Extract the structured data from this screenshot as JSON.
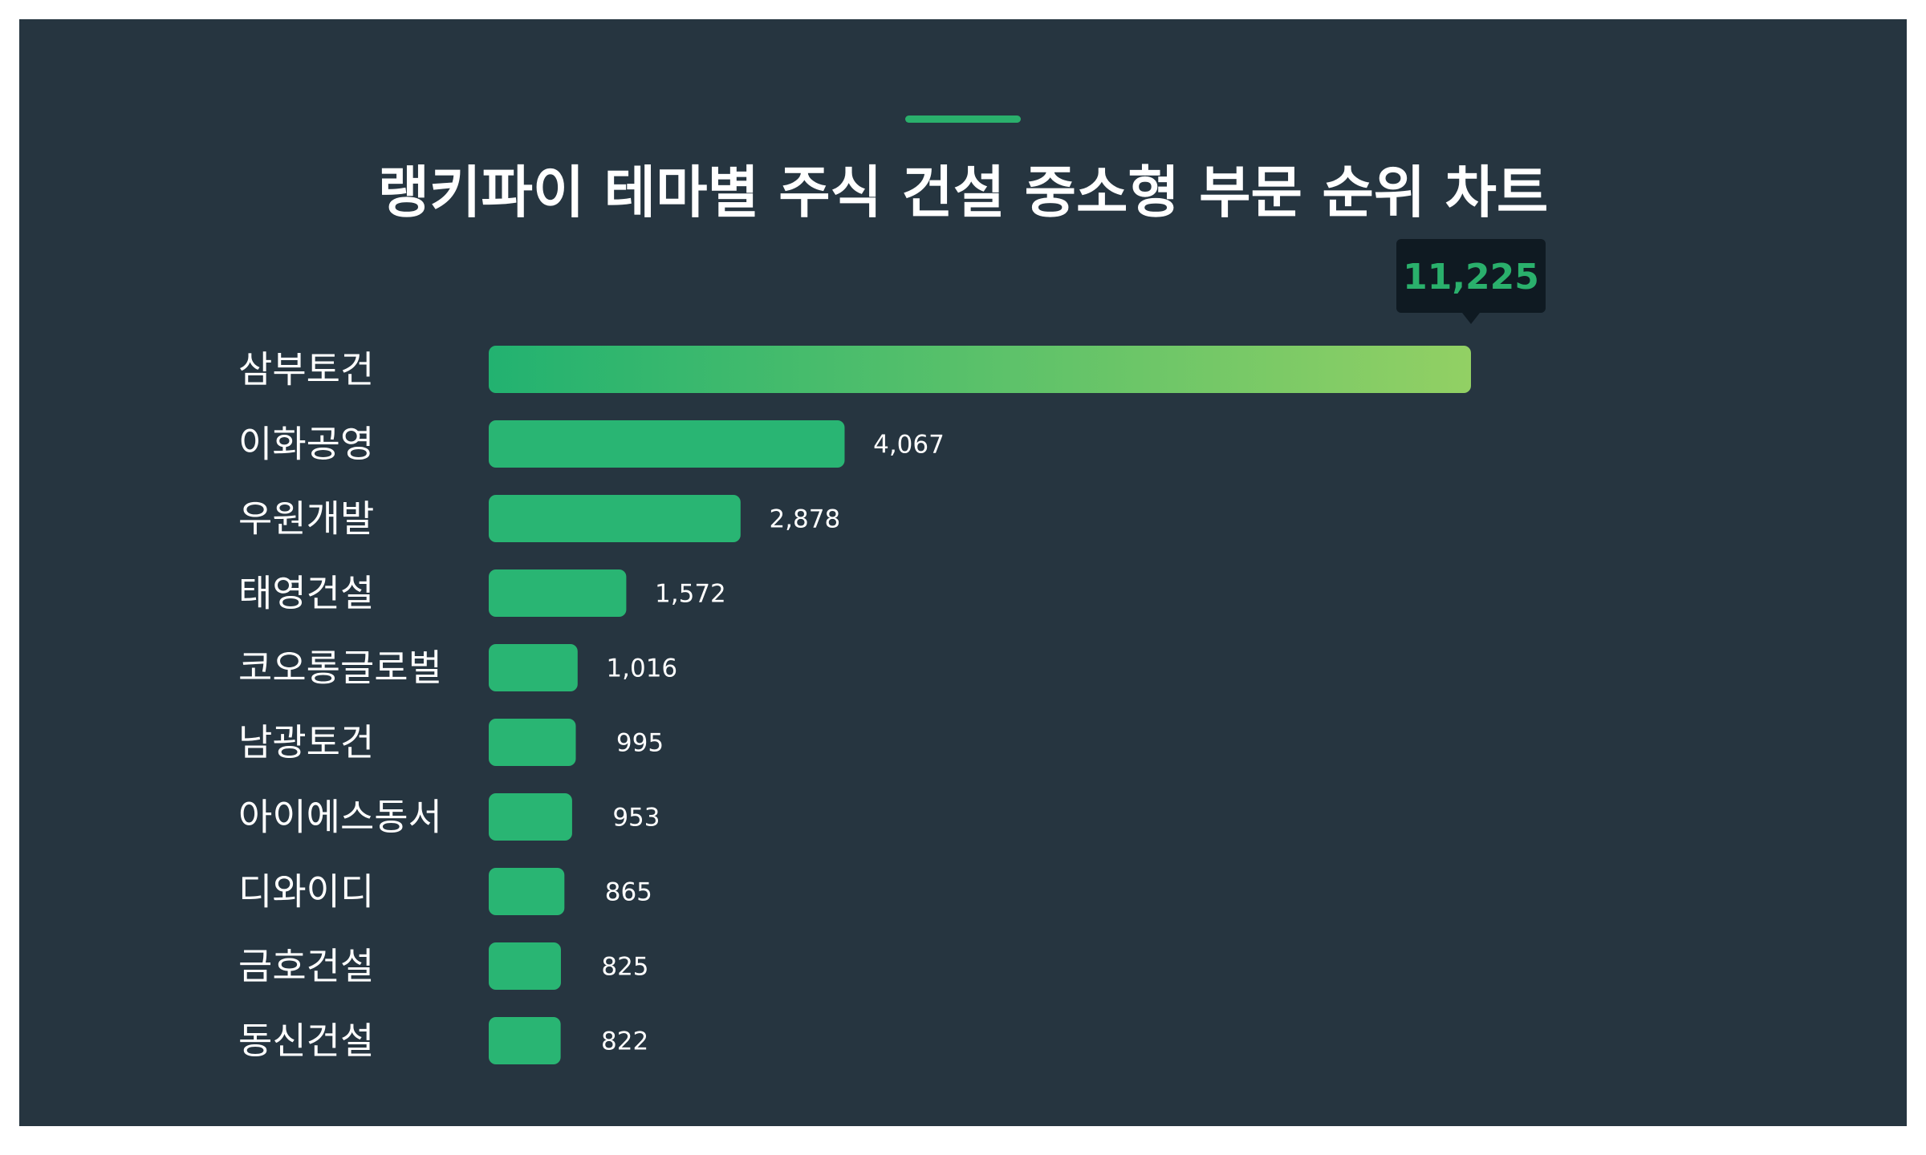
{
  "title": "랭키파이 테마별 주식 건설 중소형 부문 순위 차트",
  "colors": {
    "background": "#263540",
    "bar": "#29b573",
    "gradient_start": "#22b270",
    "gradient_end": "#92d064",
    "tooltip_bg": "#0f1a22",
    "top_value_text": "#2ab06c",
    "accent": "#2ab06c"
  },
  "chart_data": {
    "type": "bar",
    "orientation": "horizontal",
    "title": "랭키파이 테마별 주식 건설 중소형 부문 순위 차트",
    "categories": [
      "삼부토건",
      "이화공영",
      "우원개발",
      "태영건설",
      "코오롱글로벌",
      "남광토건",
      "아이에스동서",
      "디와이디",
      "금호건설",
      "동신건설"
    ],
    "values": [
      11225,
      4067,
      2878,
      1572,
      1016,
      995,
      953,
      865,
      825,
      822
    ],
    "value_labels": [
      "11,225",
      "4,067",
      "2,878",
      "1,572",
      "1,016",
      "995",
      "953",
      "865",
      "825",
      "822"
    ],
    "xlim": [
      0,
      11225
    ],
    "grid": false,
    "legend": "none"
  }
}
